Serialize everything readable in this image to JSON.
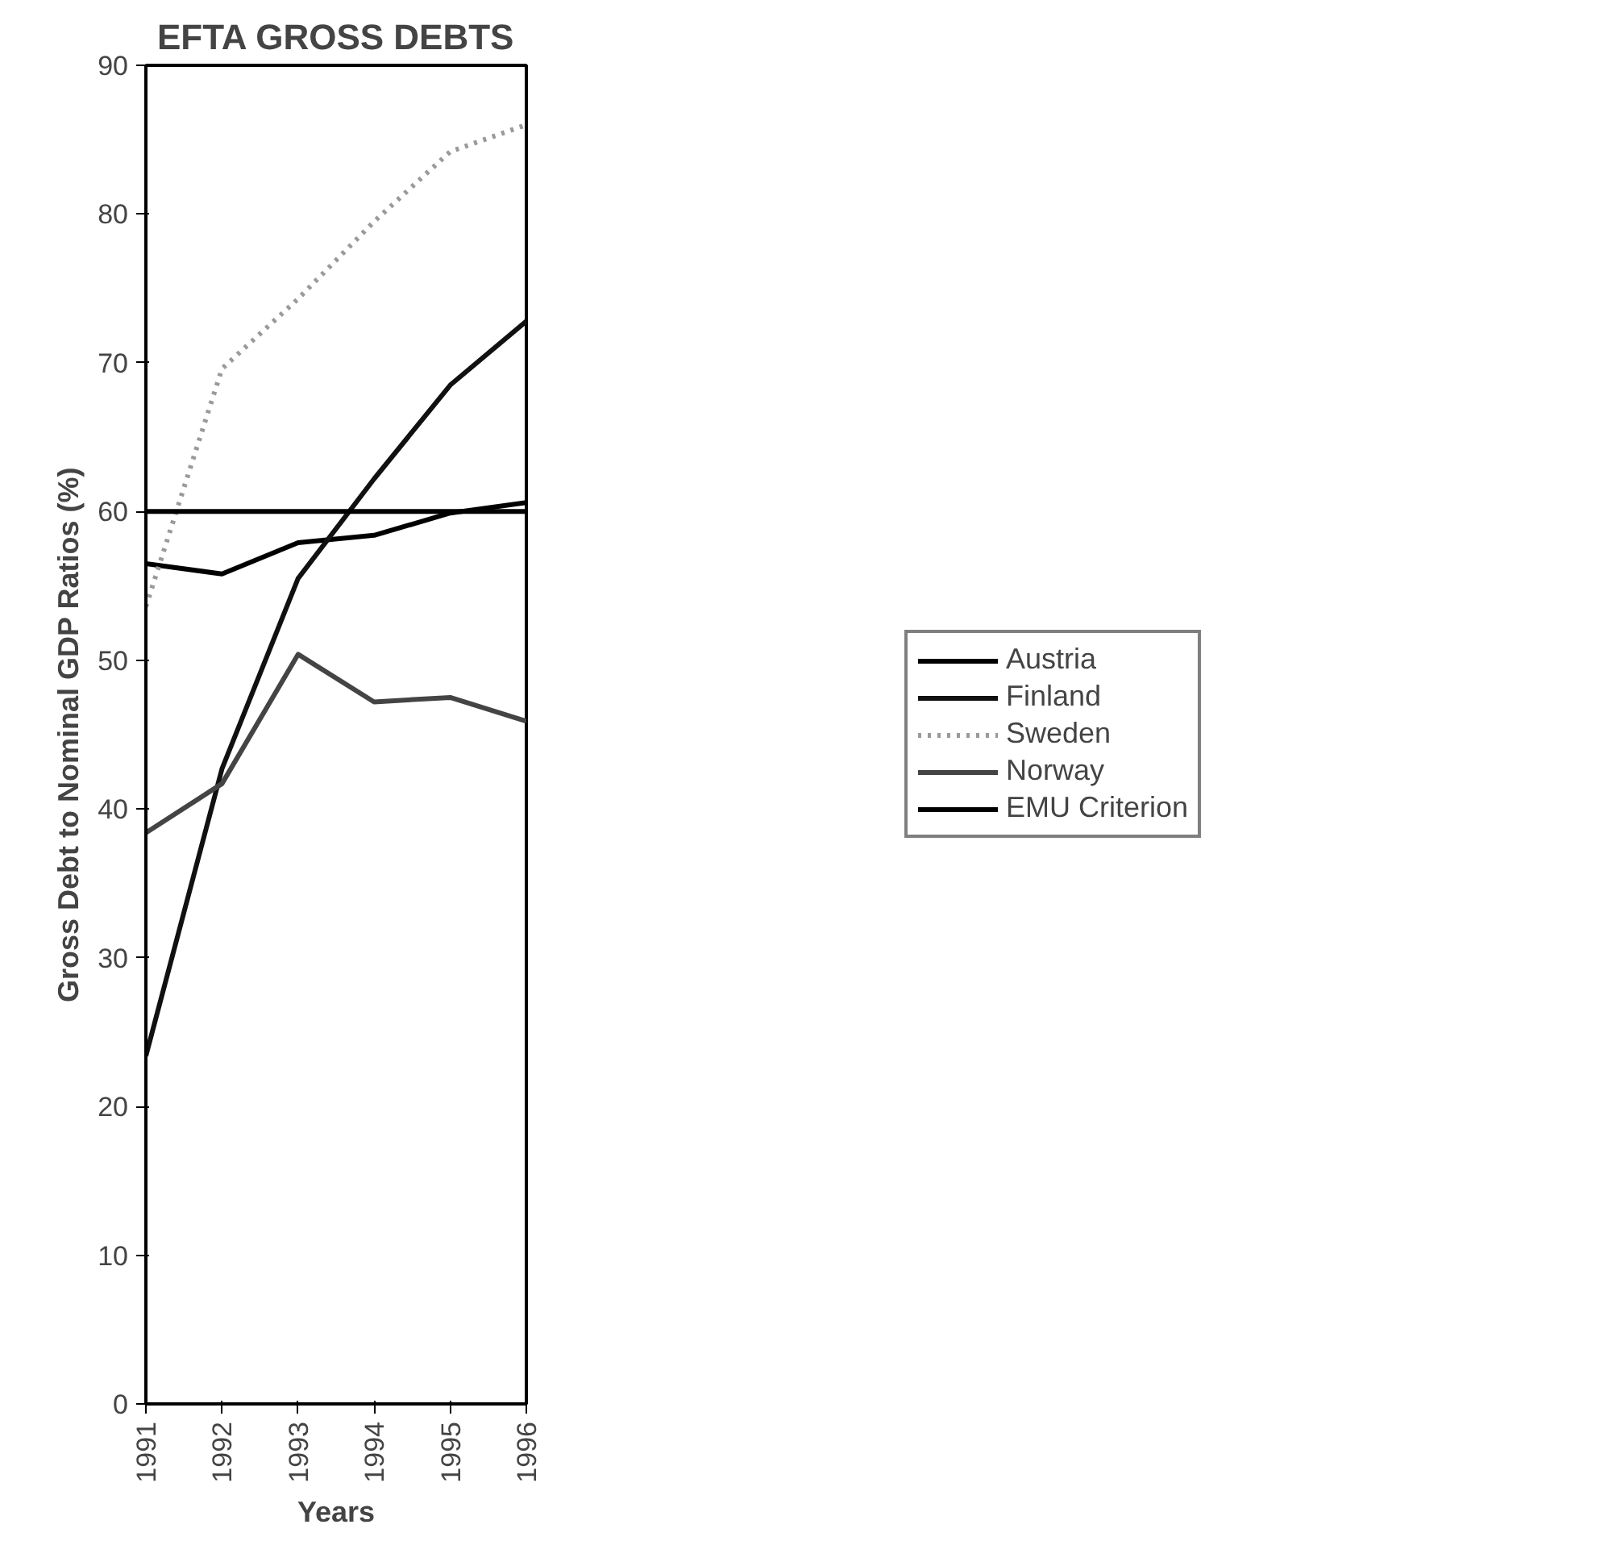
{
  "chart_data": {
    "type": "line",
    "title": "EFTA GROSS DEBTS",
    "xlabel": "Years",
    "ylabel": "Gross Debt to Nominal GDP Ratios (%)",
    "x": [
      1991,
      1992,
      1993,
      1994,
      1995,
      1996
    ],
    "xlim": [
      1991,
      1996
    ],
    "xticks": [
      1991,
      1992,
      1993,
      1994,
      1995,
      1996
    ],
    "ylim": [
      0,
      90
    ],
    "yticks": [
      0,
      10,
      20,
      30,
      40,
      50,
      60,
      70,
      80,
      90
    ],
    "grid": false,
    "legend": "right",
    "marker": "none",
    "series": [
      {
        "name": "Austria",
        "color": "#000000",
        "values": [
          56.5,
          55.8,
          57.9,
          58.4,
          59.9,
          60.6
        ]
      },
      {
        "name": "Finland",
        "color": "#111111",
        "values": [
          23.4,
          42.7,
          55.5,
          62.2,
          68.5,
          72.8
        ]
      },
      {
        "name": "Sweden",
        "color": "#9a9a9a",
        "line_style": "dotted",
        "values": [
          53.6,
          69.6,
          74.3,
          79.5,
          84.2,
          86.0
        ]
      },
      {
        "name": "Norway",
        "color": "#444444",
        "values": [
          38.4,
          41.7,
          50.4,
          47.2,
          47.5,
          45.9
        ]
      },
      {
        "name": "EMU Criterion",
        "color": "#000000",
        "values": [
          60,
          60,
          60,
          60,
          60,
          60
        ]
      }
    ]
  }
}
